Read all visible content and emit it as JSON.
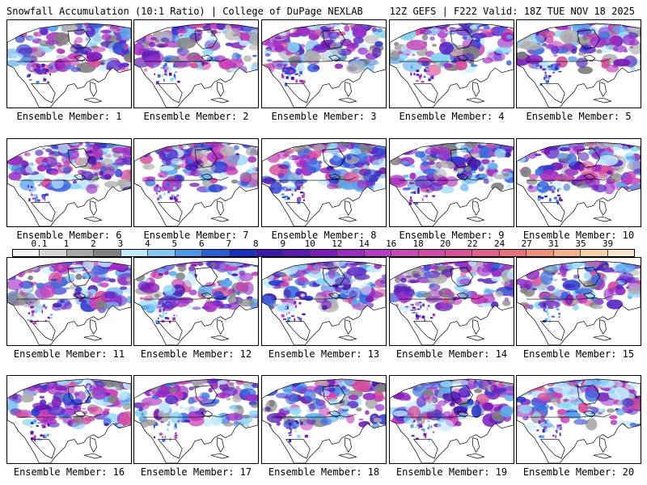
{
  "header": {
    "left_title": "Snowfall Accumulation (10:1 Ratio) | College of DuPage NEXLAB",
    "right_title": "12Z GEFS | F222 Valid: 18Z TUE NOV 18 2025"
  },
  "legend": {
    "ticks": [
      "0.1",
      "1",
      "2",
      "3",
      "4",
      "5",
      "6",
      "7",
      "8",
      "9",
      "10",
      "12",
      "14",
      "16",
      "18",
      "20",
      "22",
      "24",
      "27",
      "31",
      "35",
      "39"
    ],
    "colors": [
      "#f4f4f4",
      "#d6d6d6",
      "#a8a8a8",
      "#808080",
      "#bfe9ff",
      "#82c8f5",
      "#4a98e8",
      "#2a5ed8",
      "#1a2ec0",
      "#3a1aa8",
      "#5a1ab0",
      "#7a1ab8",
      "#9a2ac0",
      "#b83ac8",
      "#c84ab8",
      "#d04aa8",
      "#d8509a",
      "#e0608a",
      "#e8707a",
      "#f0907a",
      "#f4b08a",
      "#f8d0a8",
      "#fbe6cc"
    ]
  },
  "panels": [
    {
      "label": "Ensemble Member: 1"
    },
    {
      "label": "Ensemble Member: 2"
    },
    {
      "label": "Ensemble Member: 3"
    },
    {
      "label": "Ensemble Member: 4"
    },
    {
      "label": "Ensemble Member: 5"
    },
    {
      "label": "Ensemble Member: 6"
    },
    {
      "label": "Ensemble Member: 7"
    },
    {
      "label": "Ensemble Member: 8"
    },
    {
      "label": "Ensemble Member: 9"
    },
    {
      "label": "Ensemble Member: 10"
    },
    {
      "label": "Ensemble Member: 11"
    },
    {
      "label": "Ensemble Member: 12"
    },
    {
      "label": "Ensemble Member: 13"
    },
    {
      "label": "Ensemble Member: 14"
    },
    {
      "label": "Ensemble Member: 15"
    },
    {
      "label": "Ensemble Member: 16"
    },
    {
      "label": "Ensemble Member: 17"
    },
    {
      "label": "Ensemble Member: 18"
    },
    {
      "label": "Ensemble Member: 19"
    },
    {
      "label": "Ensemble Member: 20"
    }
  ]
}
